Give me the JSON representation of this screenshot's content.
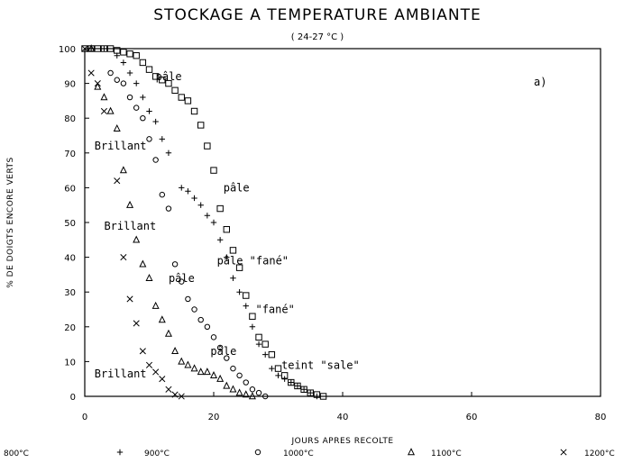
{
  "chart_data": {
    "type": "scatter",
    "title": "STOCKAGE A TEMPERATURE AMBIANTE",
    "subtitle": "( 24-27 °C )",
    "panel_label": "a)",
    "xlabel": "JOURS APRES RECOLTE",
    "ylabel": "% DE DOIGTS ENCORE VERTS",
    "xlim": [
      0,
      80
    ],
    "ylim": [
      0,
      100
    ],
    "xticks": [
      0,
      20,
      40,
      60,
      80
    ],
    "yticks": [
      0,
      10,
      20,
      30,
      40,
      50,
      60,
      70,
      80,
      90,
      100
    ],
    "grid": false,
    "legend_position": "bottom",
    "series": [
      {
        "name": "800°C",
        "marker": "square",
        "points": [
          [
            0,
            100
          ],
          [
            1,
            100
          ],
          [
            2,
            100
          ],
          [
            3,
            100
          ],
          [
            4,
            100
          ],
          [
            5,
            99.5
          ],
          [
            6,
            99
          ],
          [
            7,
            98.5
          ],
          [
            8,
            98
          ],
          [
            9,
            96
          ],
          [
            10,
            94
          ],
          [
            11,
            92
          ],
          [
            12,
            91
          ],
          [
            13,
            90
          ],
          [
            14,
            88
          ],
          [
            15,
            86
          ],
          [
            16,
            85
          ],
          [
            17,
            82
          ],
          [
            18,
            78
          ],
          [
            19,
            72
          ],
          [
            20,
            65
          ],
          [
            21,
            54
          ],
          [
            22,
            48
          ],
          [
            23,
            42
          ],
          [
            24,
            37
          ],
          [
            25,
            29
          ],
          [
            26,
            23
          ],
          [
            27,
            17
          ],
          [
            28,
            15
          ],
          [
            29,
            12
          ],
          [
            30,
            8
          ],
          [
            31,
            6
          ],
          [
            32,
            4
          ],
          [
            33,
            3
          ],
          [
            34,
            2
          ],
          [
            35,
            1
          ],
          [
            36,
            0.5
          ],
          [
            37,
            0
          ]
        ]
      },
      {
        "name": "900°C",
        "marker": "plus",
        "points": [
          [
            1,
            100
          ],
          [
            3,
            100
          ],
          [
            5,
            98
          ],
          [
            6,
            96
          ],
          [
            7,
            93
          ],
          [
            8,
            90
          ],
          [
            9,
            86
          ],
          [
            10,
            82
          ],
          [
            11,
            79
          ],
          [
            12,
            74
          ],
          [
            13,
            70
          ],
          [
            15,
            60
          ],
          [
            16,
            59
          ],
          [
            17,
            57
          ],
          [
            18,
            55
          ],
          [
            19,
            52
          ],
          [
            20,
            50
          ],
          [
            21,
            45
          ],
          [
            22,
            40
          ],
          [
            23,
            34
          ],
          [
            24,
            30
          ],
          [
            25,
            26
          ],
          [
            26,
            20
          ],
          [
            27,
            15
          ],
          [
            28,
            12
          ],
          [
            29,
            8
          ],
          [
            30,
            6
          ],
          [
            31,
            5
          ],
          [
            32,
            4
          ],
          [
            33,
            3
          ],
          [
            34,
            2
          ],
          [
            35,
            1
          ],
          [
            36,
            0
          ]
        ]
      },
      {
        "name": "1000°C",
        "marker": "circle",
        "points": [
          [
            4,
            93
          ],
          [
            5,
            91
          ],
          [
            6,
            90
          ],
          [
            7,
            86
          ],
          [
            8,
            83
          ],
          [
            9,
            80
          ],
          [
            10,
            74
          ],
          [
            11,
            68
          ],
          [
            12,
            58
          ],
          [
            13,
            54
          ],
          [
            14,
            38
          ],
          [
            15,
            33
          ],
          [
            16,
            28
          ],
          [
            17,
            25
          ],
          [
            18,
            22
          ],
          [
            19,
            20
          ],
          [
            20,
            17
          ],
          [
            21,
            14
          ],
          [
            22,
            11
          ],
          [
            23,
            8
          ],
          [
            24,
            6
          ],
          [
            25,
            4
          ],
          [
            26,
            2
          ],
          [
            27,
            1
          ],
          [
            28,
            0
          ]
        ]
      },
      {
        "name": "1100°C",
        "marker": "triangle",
        "points": [
          [
            1,
            100
          ],
          [
            2,
            89
          ],
          [
            3,
            86
          ],
          [
            4,
            82
          ],
          [
            5,
            77
          ],
          [
            6,
            65
          ],
          [
            7,
            55
          ],
          [
            8,
            45
          ],
          [
            9,
            38
          ],
          [
            10,
            34
          ],
          [
            11,
            26
          ],
          [
            12,
            22
          ],
          [
            13,
            18
          ],
          [
            14,
            13
          ],
          [
            15,
            10
          ],
          [
            16,
            9
          ],
          [
            17,
            8
          ],
          [
            18,
            7
          ],
          [
            19,
            7
          ],
          [
            20,
            6
          ],
          [
            21,
            5
          ],
          [
            22,
            3
          ],
          [
            23,
            2
          ],
          [
            24,
            1
          ],
          [
            25,
            0.5
          ],
          [
            26,
            0
          ]
        ]
      },
      {
        "name": "1200°C",
        "marker": "cross",
        "points": [
          [
            0,
            100
          ],
          [
            1,
            93
          ],
          [
            2,
            90
          ],
          [
            3,
            82
          ],
          [
            5,
            62
          ],
          [
            6,
            40
          ],
          [
            7,
            28
          ],
          [
            8,
            21
          ],
          [
            9,
            13
          ],
          [
            10,
            9
          ],
          [
            11,
            7
          ],
          [
            12,
            5
          ],
          [
            13,
            2
          ],
          [
            14,
            0.5
          ],
          [
            15,
            0
          ]
        ]
      }
    ],
    "annotations": [
      {
        "text": "pâle",
        "x": 11,
        "y": 92
      },
      {
        "text": "Brillant",
        "x": 1.5,
        "y": 72
      },
      {
        "text": "pâle",
        "x": 21.5,
        "y": 60
      },
      {
        "text": "Brillant",
        "x": 3,
        "y": 49
      },
      {
        "text": "pâle \"fané\"",
        "x": 20.5,
        "y": 39
      },
      {
        "text": "pâle",
        "x": 13,
        "y": 34
      },
      {
        "text": "\"fané\"",
        "x": 26.5,
        "y": 25
      },
      {
        "text": "pâle",
        "x": 19.5,
        "y": 13
      },
      {
        "text": "teint \"sale\"",
        "x": 30.5,
        "y": 9
      },
      {
        "text": "Brillant",
        "x": 1.5,
        "y": 6.5
      }
    ]
  }
}
